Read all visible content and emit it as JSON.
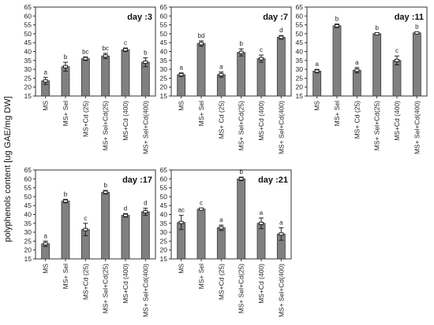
{
  "figure": {
    "ylabel": "polyphenols content [ug GAE/mg DW]",
    "bar_color": "#808080"
  },
  "chart_data": [
    {
      "type": "bar",
      "title": "day :3",
      "categories": [
        "MS",
        "MS+ Sel",
        "MS+Cd (25)",
        "MS+ Sel+Cd(25)",
        "MS+Cd (400)",
        "MS+ Sel+Cd(400)"
      ],
      "values": [
        23.5,
        31.5,
        36,
        37.5,
        41,
        34
      ],
      "errors": [
        2,
        2.5,
        1,
        1.5,
        1,
        2.5
      ],
      "letters": [
        "a",
        "b",
        "bc",
        "bc",
        "c",
        "b"
      ],
      "ylim": [
        15,
        65
      ],
      "yticks": [
        15,
        20,
        25,
        30,
        35,
        40,
        45,
        50,
        55,
        60,
        65
      ]
    },
    {
      "type": "bar",
      "title": "day :7",
      "categories": [
        "MS",
        "MS+ Sel",
        "MS+ Cd (25)",
        "MS+ Sel+Cd(25)",
        "MS+Cd (400)",
        "MS+ Sel+Cd(400)"
      ],
      "values": [
        27,
        44.5,
        27,
        39.5,
        36,
        48
      ],
      "errors": [
        1,
        1.5,
        1.5,
        2,
        2,
        1
      ],
      "letters": [
        "a",
        "bd",
        "a",
        "b",
        "c",
        "d"
      ],
      "ylim": [
        15,
        65
      ],
      "yticks": [
        15,
        20,
        25,
        30,
        35,
        40,
        45,
        50,
        55,
        60,
        65
      ]
    },
    {
      "type": "bar",
      "title": "day :11",
      "categories": [
        "MS",
        "MS+ Sel",
        "MS+ Cd (25)",
        "MS+ Sel+Cd(25)",
        "MS+Cd (400)",
        "MS+ Sel+Cd(400)"
      ],
      "values": [
        29,
        54.5,
        29.5,
        50,
        35,
        50.5
      ],
      "errors": [
        1,
        1,
        1.5,
        0.5,
        2.5,
        0.5
      ],
      "letters": [
        "a",
        "b",
        "a",
        "b",
        "c",
        "b"
      ],
      "ylim": [
        15,
        65
      ],
      "yticks": [
        15,
        20,
        25,
        30,
        35,
        40,
        45,
        50,
        55,
        60,
        65
      ]
    },
    {
      "type": "bar",
      "title": "day :17",
      "categories": [
        "MS",
        "MS+ Sel",
        "MS+Cd (25)",
        "MS+ Sel+Cd(25)",
        "MS+Cd (400)",
        "MS+ Sel+Cd(400)"
      ],
      "values": [
        23.5,
        47.5,
        31.5,
        52.5,
        39.5,
        41.5
      ],
      "errors": [
        1.5,
        1,
        3.5,
        1,
        1,
        2
      ],
      "letters": [
        "a",
        "b",
        "c",
        "b",
        "d",
        "d"
      ],
      "ylim": [
        15,
        65
      ],
      "yticks": [
        15,
        20,
        25,
        30,
        35,
        40,
        45,
        50,
        55,
        60,
        65
      ]
    },
    {
      "type": "bar",
      "title": "day :21",
      "categories": [
        "MS",
        "MS+ Sel",
        "MS+Cd (25)",
        "MS+ Sel+Cd(25)",
        "MS+Cd (400)",
        "MS+ Sel+Cd(400)"
      ],
      "values": [
        35.5,
        43,
        32.5,
        60,
        35,
        29
      ],
      "errors": [
        4,
        0.5,
        1.5,
        1,
        3,
        3.5
      ],
      "letters": [
        "ac",
        "c",
        "a",
        "b",
        "a",
        "a"
      ],
      "ylim": [
        15,
        65
      ],
      "yticks": [
        15,
        20,
        25,
        30,
        35,
        40,
        45,
        50,
        55,
        60,
        65
      ]
    }
  ]
}
